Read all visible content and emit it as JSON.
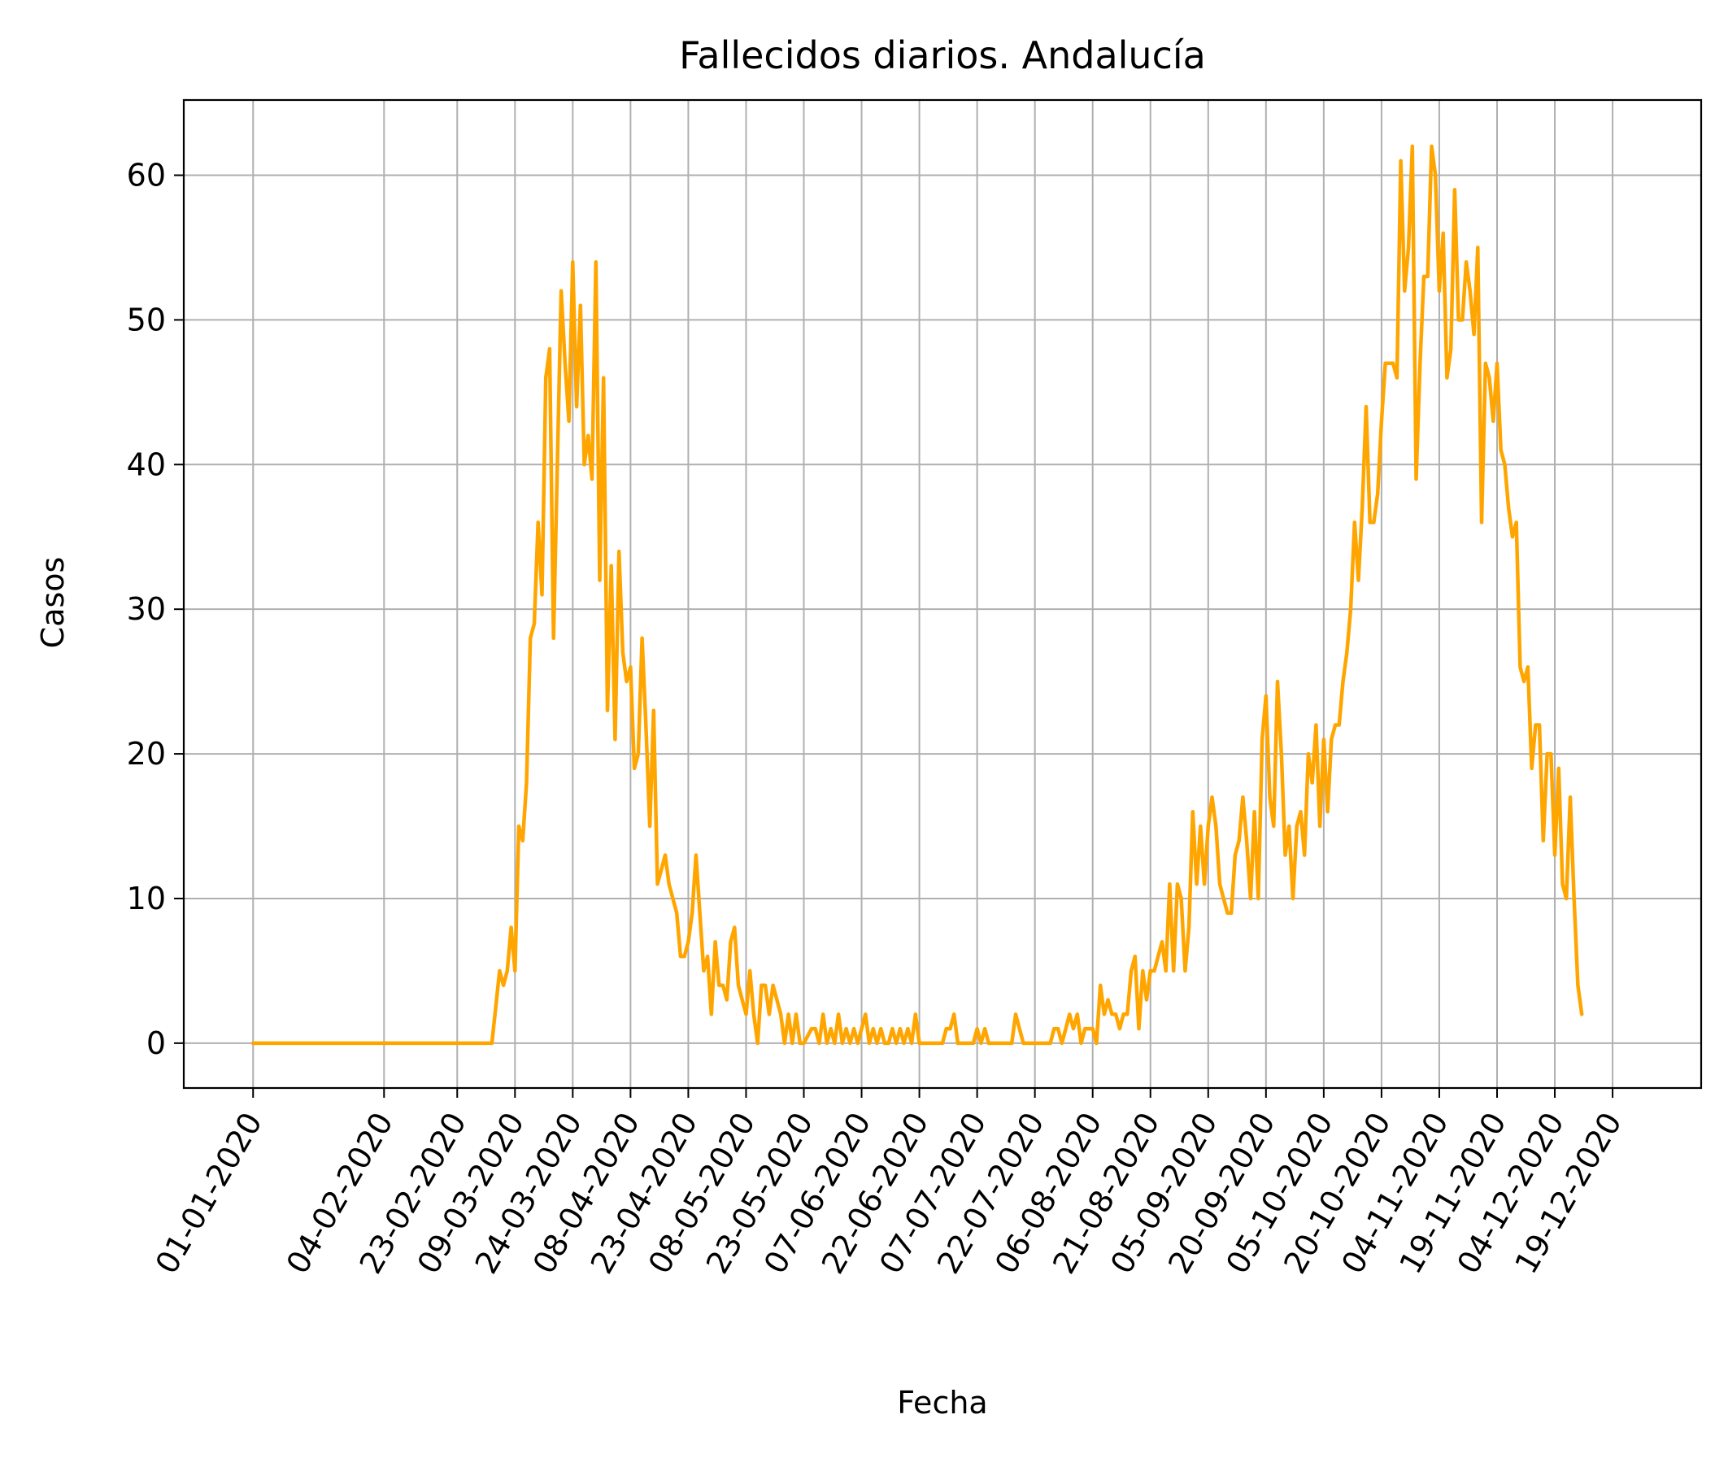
{
  "chart_data": {
    "type": "line",
    "title": "Fallecidos diarios. Andalucía",
    "xlabel": "Fecha",
    "ylabel": "Casos",
    "ylim": [
      -3.1,
      65.2
    ],
    "xlim": [
      "2019-12-14",
      "2021-01-11"
    ],
    "grid": true,
    "line_color": "#ffa500",
    "grid_color": "#b0b0b0",
    "x_ticks": [
      {
        "date": "2020-01-01",
        "label": "01-01-2020"
      },
      {
        "date": "2020-02-04",
        "label": "04-02-2020"
      },
      {
        "date": "2020-02-23",
        "label": "23-02-2020"
      },
      {
        "date": "2020-03-09",
        "label": "09-03-2020"
      },
      {
        "date": "2020-03-24",
        "label": "24-03-2020"
      },
      {
        "date": "2020-04-08",
        "label": "08-04-2020"
      },
      {
        "date": "2020-04-23",
        "label": "23-04-2020"
      },
      {
        "date": "2020-05-08",
        "label": "08-05-2020"
      },
      {
        "date": "2020-05-23",
        "label": "23-05-2020"
      },
      {
        "date": "2020-06-07",
        "label": "07-06-2020"
      },
      {
        "date": "2020-06-22",
        "label": "22-06-2020"
      },
      {
        "date": "2020-07-07",
        "label": "07-07-2020"
      },
      {
        "date": "2020-07-22",
        "label": "22-07-2020"
      },
      {
        "date": "2020-08-06",
        "label": "06-08-2020"
      },
      {
        "date": "2020-08-21",
        "label": "21-08-2020"
      },
      {
        "date": "2020-09-05",
        "label": "05-09-2020"
      },
      {
        "date": "2020-09-20",
        "label": "20-09-2020"
      },
      {
        "date": "2020-10-05",
        "label": "05-10-2020"
      },
      {
        "date": "2020-10-20",
        "label": "20-10-2020"
      },
      {
        "date": "2020-11-04",
        "label": "04-11-2020"
      },
      {
        "date": "2020-11-19",
        "label": "19-11-2020"
      },
      {
        "date": "2020-12-04",
        "label": "04-12-2020"
      },
      {
        "date": "2020-12-19",
        "label": "19-12-2020"
      }
    ],
    "y_ticks": [
      0,
      10,
      20,
      30,
      40,
      50,
      60
    ],
    "series": [
      {
        "points": [
          [
            "2020-01-01",
            0
          ],
          [
            "2020-02-15",
            0
          ],
          [
            "2020-03-01",
            0
          ],
          [
            "2020-03-03",
            0
          ],
          [
            "2020-03-05",
            5
          ],
          [
            "2020-03-06",
            4
          ],
          [
            "2020-03-07",
            5
          ],
          [
            "2020-03-08",
            8
          ],
          [
            "2020-03-09",
            5
          ],
          [
            "2020-03-10",
            15
          ],
          [
            "2020-03-11",
            14
          ],
          [
            "2020-03-12",
            18
          ],
          [
            "2020-03-13",
            28
          ],
          [
            "2020-03-14",
            29
          ],
          [
            "2020-03-15",
            36
          ],
          [
            "2020-03-16",
            31
          ],
          [
            "2020-03-17",
            46
          ],
          [
            "2020-03-18",
            48
          ],
          [
            "2020-03-19",
            28
          ],
          [
            "2020-03-20",
            40
          ],
          [
            "2020-03-21",
            52
          ],
          [
            "2020-03-22",
            47
          ],
          [
            "2020-03-23",
            43
          ],
          [
            "2020-03-24",
            54
          ],
          [
            "2020-03-25",
            44
          ],
          [
            "2020-03-26",
            51
          ],
          [
            "2020-03-27",
            40
          ],
          [
            "2020-03-28",
            42
          ],
          [
            "2020-03-29",
            39
          ],
          [
            "2020-03-30",
            54
          ],
          [
            "2020-03-31",
            32
          ],
          [
            "2020-04-01",
            46
          ],
          [
            "2020-04-02",
            23
          ],
          [
            "2020-04-03",
            33
          ],
          [
            "2020-04-04",
            21
          ],
          [
            "2020-04-05",
            34
          ],
          [
            "2020-04-06",
            27
          ],
          [
            "2020-04-07",
            25
          ],
          [
            "2020-04-08",
            26
          ],
          [
            "2020-04-09",
            19
          ],
          [
            "2020-04-10",
            20
          ],
          [
            "2020-04-11",
            28
          ],
          [
            "2020-04-12",
            22
          ],
          [
            "2020-04-13",
            15
          ],
          [
            "2020-04-14",
            23
          ],
          [
            "2020-04-15",
            11
          ],
          [
            "2020-04-16",
            12
          ],
          [
            "2020-04-17",
            13
          ],
          [
            "2020-04-18",
            11
          ],
          [
            "2020-04-20",
            9
          ],
          [
            "2020-04-21",
            6
          ],
          [
            "2020-04-22",
            6
          ],
          [
            "2020-04-23",
            7
          ],
          [
            "2020-04-24",
            9
          ],
          [
            "2020-04-25",
            13
          ],
          [
            "2020-04-26",
            9
          ],
          [
            "2020-04-27",
            5
          ],
          [
            "2020-04-28",
            6
          ],
          [
            "2020-04-29",
            2
          ],
          [
            "2020-04-30",
            7
          ],
          [
            "2020-05-01",
            4
          ],
          [
            "2020-05-02",
            4
          ],
          [
            "2020-05-03",
            3
          ],
          [
            "2020-05-04",
            7
          ],
          [
            "2020-05-05",
            8
          ],
          [
            "2020-05-06",
            4
          ],
          [
            "2020-05-07",
            3
          ],
          [
            "2020-05-08",
            2
          ],
          [
            "2020-05-09",
            5
          ],
          [
            "2020-05-10",
            2
          ],
          [
            "2020-05-11",
            0
          ],
          [
            "2020-05-12",
            4
          ],
          [
            "2020-05-13",
            4
          ],
          [
            "2020-05-14",
            2
          ],
          [
            "2020-05-15",
            4
          ],
          [
            "2020-05-16",
            3
          ],
          [
            "2020-05-17",
            2
          ],
          [
            "2020-05-18",
            0
          ],
          [
            "2020-05-19",
            2
          ],
          [
            "2020-05-20",
            0
          ],
          [
            "2020-05-21",
            2
          ],
          [
            "2020-05-22",
            0
          ],
          [
            "2020-05-23",
            0
          ],
          [
            "2020-05-25",
            1
          ],
          [
            "2020-05-26",
            1
          ],
          [
            "2020-05-27",
            0
          ],
          [
            "2020-05-28",
            2
          ],
          [
            "2020-05-29",
            0
          ],
          [
            "2020-05-30",
            1
          ],
          [
            "2020-05-31",
            0
          ],
          [
            "2020-06-01",
            2
          ],
          [
            "2020-06-02",
            0
          ],
          [
            "2020-06-03",
            1
          ],
          [
            "2020-06-04",
            0
          ],
          [
            "2020-06-05",
            1
          ],
          [
            "2020-06-06",
            0
          ],
          [
            "2020-06-08",
            2
          ],
          [
            "2020-06-09",
            0
          ],
          [
            "2020-06-10",
            1
          ],
          [
            "2020-06-11",
            0
          ],
          [
            "2020-06-12",
            1
          ],
          [
            "2020-06-13",
            0
          ],
          [
            "2020-06-14",
            0
          ],
          [
            "2020-06-15",
            1
          ],
          [
            "2020-06-16",
            0
          ],
          [
            "2020-06-17",
            1
          ],
          [
            "2020-06-18",
            0
          ],
          [
            "2020-06-19",
            1
          ],
          [
            "2020-06-20",
            0
          ],
          [
            "2020-06-21",
            2
          ],
          [
            "2020-06-22",
            0
          ],
          [
            "2020-06-23",
            0
          ],
          [
            "2020-06-28",
            0
          ],
          [
            "2020-06-29",
            1
          ],
          [
            "2020-06-30",
            1
          ],
          [
            "2020-07-01",
            2
          ],
          [
            "2020-07-02",
            0
          ],
          [
            "2020-07-06",
            0
          ],
          [
            "2020-07-07",
            1
          ],
          [
            "2020-07-08",
            0
          ],
          [
            "2020-07-09",
            1
          ],
          [
            "2020-07-10",
            0
          ],
          [
            "2020-07-16",
            0
          ],
          [
            "2020-07-17",
            2
          ],
          [
            "2020-07-18",
            1
          ],
          [
            "2020-07-19",
            0
          ],
          [
            "2020-07-26",
            0
          ],
          [
            "2020-07-27",
            1
          ],
          [
            "2020-07-28",
            1
          ],
          [
            "2020-07-29",
            0
          ],
          [
            "2020-07-30",
            1
          ],
          [
            "2020-07-31",
            2
          ],
          [
            "2020-08-01",
            1
          ],
          [
            "2020-08-02",
            2
          ],
          [
            "2020-08-03",
            0
          ],
          [
            "2020-08-04",
            1
          ],
          [
            "2020-08-05",
            1
          ],
          [
            "2020-08-06",
            1
          ],
          [
            "2020-08-07",
            0
          ],
          [
            "2020-08-08",
            4
          ],
          [
            "2020-08-09",
            2
          ],
          [
            "2020-08-10",
            3
          ],
          [
            "2020-08-11",
            2
          ],
          [
            "2020-08-12",
            2
          ],
          [
            "2020-08-13",
            1
          ],
          [
            "2020-08-14",
            2
          ],
          [
            "2020-08-15",
            2
          ],
          [
            "2020-08-16",
            5
          ],
          [
            "2020-08-17",
            6
          ],
          [
            "2020-08-18",
            1
          ],
          [
            "2020-08-19",
            5
          ],
          [
            "2020-08-20",
            3
          ],
          [
            "2020-08-21",
            5
          ],
          [
            "2020-08-22",
            5
          ],
          [
            "2020-08-23",
            6
          ],
          [
            "2020-08-24",
            7
          ],
          [
            "2020-08-25",
            5
          ],
          [
            "2020-08-26",
            11
          ],
          [
            "2020-08-27",
            5
          ],
          [
            "2020-08-28",
            11
          ],
          [
            "2020-08-29",
            10
          ],
          [
            "2020-08-30",
            5
          ],
          [
            "2020-08-31",
            8
          ],
          [
            "2020-09-01",
            16
          ],
          [
            "2020-09-02",
            11
          ],
          [
            "2020-09-03",
            15
          ],
          [
            "2020-09-04",
            11
          ],
          [
            "2020-09-05",
            15
          ],
          [
            "2020-09-06",
            17
          ],
          [
            "2020-09-07",
            15
          ],
          [
            "2020-09-08",
            11
          ],
          [
            "2020-09-09",
            10
          ],
          [
            "2020-09-10",
            9
          ],
          [
            "2020-09-11",
            9
          ],
          [
            "2020-09-12",
            13
          ],
          [
            "2020-09-13",
            14
          ],
          [
            "2020-09-14",
            17
          ],
          [
            "2020-09-15",
            14
          ],
          [
            "2020-09-16",
            10
          ],
          [
            "2020-09-17",
            16
          ],
          [
            "2020-09-18",
            10
          ],
          [
            "2020-09-19",
            21
          ],
          [
            "2020-09-20",
            24
          ],
          [
            "2020-09-21",
            17
          ],
          [
            "2020-09-22",
            15
          ],
          [
            "2020-09-23",
            25
          ],
          [
            "2020-09-24",
            20
          ],
          [
            "2020-09-25",
            13
          ],
          [
            "2020-09-26",
            15
          ],
          [
            "2020-09-27",
            10
          ],
          [
            "2020-09-28",
            15
          ],
          [
            "2020-09-29",
            16
          ],
          [
            "2020-09-30",
            13
          ],
          [
            "2020-10-01",
            20
          ],
          [
            "2020-10-02",
            18
          ],
          [
            "2020-10-03",
            22
          ],
          [
            "2020-10-04",
            15
          ],
          [
            "2020-10-05",
            21
          ],
          [
            "2020-10-06",
            16
          ],
          [
            "2020-10-07",
            21
          ],
          [
            "2020-10-08",
            22
          ],
          [
            "2020-10-09",
            22
          ],
          [
            "2020-10-10",
            25
          ],
          [
            "2020-10-11",
            27
          ],
          [
            "2020-10-12",
            30
          ],
          [
            "2020-10-13",
            36
          ],
          [
            "2020-10-14",
            32
          ],
          [
            "2020-10-15",
            37
          ],
          [
            "2020-10-16",
            44
          ],
          [
            "2020-10-17",
            36
          ],
          [
            "2020-10-18",
            36
          ],
          [
            "2020-10-19",
            38
          ],
          [
            "2020-10-20",
            43
          ],
          [
            "2020-10-21",
            47
          ],
          [
            "2020-10-22",
            47
          ],
          [
            "2020-10-23",
            47
          ],
          [
            "2020-10-24",
            46
          ],
          [
            "2020-10-25",
            61
          ],
          [
            "2020-10-26",
            52
          ],
          [
            "2020-10-27",
            55
          ],
          [
            "2020-10-28",
            62
          ],
          [
            "2020-10-29",
            39
          ],
          [
            "2020-10-30",
            47
          ],
          [
            "2020-10-31",
            53
          ],
          [
            "2020-11-01",
            53
          ],
          [
            "2020-11-02",
            62
          ],
          [
            "2020-11-03",
            60
          ],
          [
            "2020-11-04",
            52
          ],
          [
            "2020-11-05",
            56
          ],
          [
            "2020-11-06",
            46
          ],
          [
            "2020-11-07",
            48
          ],
          [
            "2020-11-08",
            59
          ],
          [
            "2020-11-09",
            50
          ],
          [
            "2020-11-10",
            50
          ],
          [
            "2020-11-11",
            54
          ],
          [
            "2020-11-12",
            52
          ],
          [
            "2020-11-13",
            49
          ],
          [
            "2020-11-14",
            55
          ],
          [
            "2020-11-15",
            36
          ],
          [
            "2020-11-16",
            47
          ],
          [
            "2020-11-17",
            46
          ],
          [
            "2020-11-18",
            43
          ],
          [
            "2020-11-19",
            47
          ],
          [
            "2020-11-20",
            41
          ],
          [
            "2020-11-21",
            40
          ],
          [
            "2020-11-22",
            37
          ],
          [
            "2020-11-23",
            35
          ],
          [
            "2020-11-24",
            36
          ],
          [
            "2020-11-25",
            26
          ],
          [
            "2020-11-26",
            25
          ],
          [
            "2020-11-27",
            26
          ],
          [
            "2020-11-28",
            19
          ],
          [
            "2020-11-29",
            22
          ],
          [
            "2020-11-30",
            22
          ],
          [
            "2020-12-01",
            14
          ],
          [
            "2020-12-02",
            20
          ],
          [
            "2020-12-03",
            20
          ],
          [
            "2020-12-04",
            13
          ],
          [
            "2020-12-05",
            19
          ],
          [
            "2020-12-06",
            11
          ],
          [
            "2020-12-07",
            10
          ],
          [
            "2020-12-08",
            17
          ],
          [
            "2020-12-09",
            10
          ],
          [
            "2020-12-10",
            4
          ],
          [
            "2020-12-11",
            2
          ]
        ]
      }
    ]
  }
}
